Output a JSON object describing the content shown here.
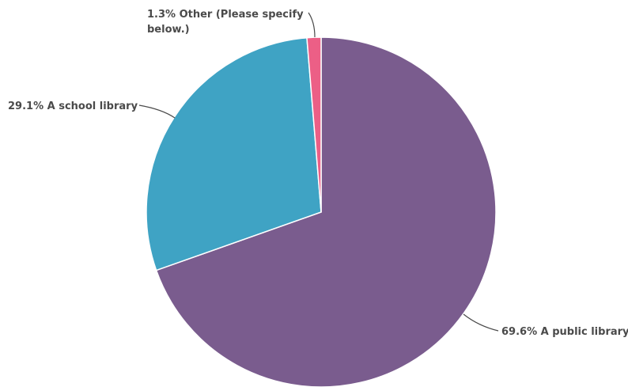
{
  "chart_data": {
    "type": "pie",
    "title": "",
    "slices": [
      {
        "label": "A public library",
        "value": 69.6,
        "display": "69.6% A public library",
        "color": "#7a5c8e"
      },
      {
        "label": "A school library",
        "value": 29.1,
        "display": "29.1% A school library",
        "color": "#3fa3c4"
      },
      {
        "label": "Other (Please specify below.)",
        "value": 1.3,
        "display_lines": [
          "1.3% Other (Please specify",
          "below.)"
        ],
        "color": "#ec5f86"
      }
    ],
    "legend": "none",
    "label_placement": "outside with leader lines"
  }
}
